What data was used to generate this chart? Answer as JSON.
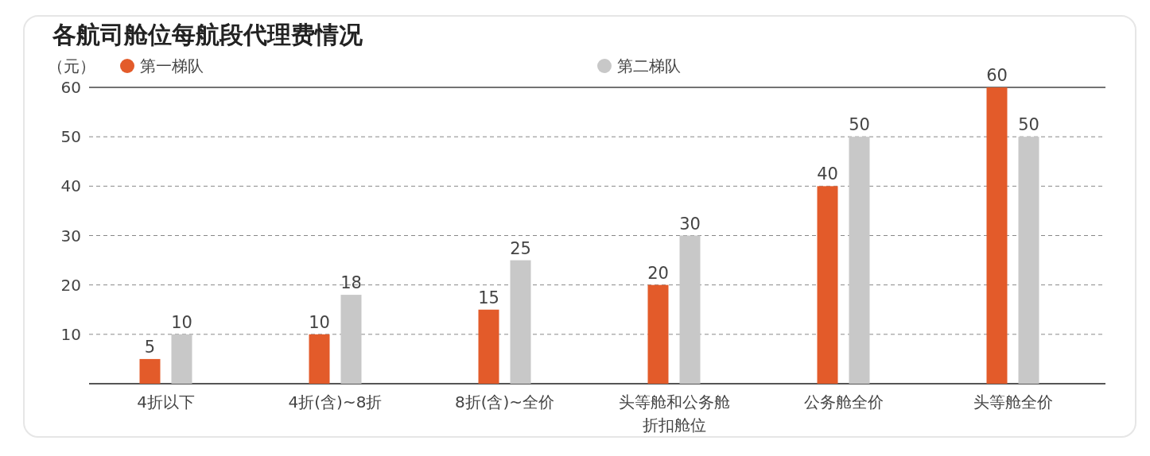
{
  "chart_data": {
    "type": "bar",
    "title": "各航司舱位每航段代理费情况",
    "ylabel": "（元）",
    "categories": [
      "4折以下",
      "4折(含)~8折",
      "8折(含)~全价",
      "头等舱和公务舱折扣舱位",
      "公务舱全价",
      "头等舱全价"
    ],
    "series": [
      {
        "name": "第一梯队",
        "color": "#e35b2a",
        "values": [
          5,
          10,
          15,
          20,
          40,
          60
        ]
      },
      {
        "name": "第二梯队",
        "color": "#c8c8c8",
        "values": [
          10,
          18,
          25,
          30,
          50,
          50
        ]
      }
    ],
    "ylim": [
      0,
      60
    ],
    "yticks": [
      10,
      20,
      30,
      40,
      50,
      60
    ],
    "grid": "y",
    "legend": "top",
    "data_labels": true
  }
}
